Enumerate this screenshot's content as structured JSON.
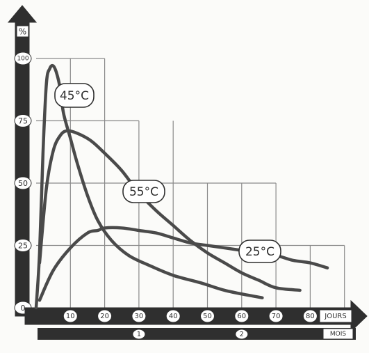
{
  "chart_data": {
    "type": "line",
    "style": "hand-drawn",
    "grid": true,
    "y_unit_label": "%",
    "x_primary_label": "JOURS",
    "x_secondary_label": "MOIS",
    "xlim": [
      0,
      90
    ],
    "ylim": [
      0,
      100
    ],
    "x_ticks": [
      {
        "value": 10,
        "label": "10"
      },
      {
        "value": 20,
        "label": "20"
      },
      {
        "value": 30,
        "label": "30"
      },
      {
        "value": 40,
        "label": "40"
      },
      {
        "value": 50,
        "label": "50"
      },
      {
        "value": 60,
        "label": "60"
      },
      {
        "value": 70,
        "label": "70"
      },
      {
        "value": 80,
        "label": "80"
      }
    ],
    "y_ticks": [
      {
        "value": 0,
        "label": "0"
      },
      {
        "value": 25,
        "label": "25"
      },
      {
        "value": 50,
        "label": "50"
      },
      {
        "value": 75,
        "label": "75"
      },
      {
        "value": 100,
        "label": "100"
      }
    ],
    "month_ticks": [
      {
        "value": 30,
        "label": "1"
      },
      {
        "value": 60,
        "label": "2"
      }
    ],
    "series": [
      {
        "name": "45°C",
        "color": "#4a4a4a",
        "points": [
          [
            0,
            0
          ],
          [
            1,
            22
          ],
          [
            2,
            62
          ],
          [
            3,
            90
          ],
          [
            4,
            96
          ],
          [
            5,
            97
          ],
          [
            6,
            94
          ],
          [
            7,
            88
          ],
          [
            8,
            78
          ],
          [
            10,
            68
          ],
          [
            12,
            58
          ],
          [
            15,
            45
          ],
          [
            18,
            35
          ],
          [
            22,
            27
          ],
          [
            27,
            21
          ],
          [
            33,
            17
          ],
          [
            40,
            13
          ],
          [
            48,
            10
          ],
          [
            55,
            7
          ],
          [
            62,
            5
          ],
          [
            66,
            4
          ]
        ]
      },
      {
        "name": "55°C",
        "color": "#4a4a4a",
        "points": [
          [
            1,
            18
          ],
          [
            3,
            48
          ],
          [
            5,
            63
          ],
          [
            7,
            69
          ],
          [
            9,
            71
          ],
          [
            12,
            70
          ],
          [
            16,
            67
          ],
          [
            20,
            62
          ],
          [
            25,
            55
          ],
          [
            30,
            46
          ],
          [
            35,
            39
          ],
          [
            40,
            33
          ],
          [
            45,
            27
          ],
          [
            50,
            22
          ],
          [
            55,
            18
          ],
          [
            60,
            14
          ],
          [
            65,
            11
          ],
          [
            70,
            8
          ],
          [
            77,
            7
          ]
        ]
      },
      {
        "name": "25°C",
        "color": "#4a4a4a",
        "points": [
          [
            1,
            3
          ],
          [
            5,
            15
          ],
          [
            10,
            24
          ],
          [
            15,
            30
          ],
          [
            18,
            31
          ],
          [
            20,
            32
          ],
          [
            25,
            32
          ],
          [
            30,
            31
          ],
          [
            35,
            30
          ],
          [
            40,
            28
          ],
          [
            45,
            26
          ],
          [
            50,
            25
          ],
          [
            55,
            24
          ],
          [
            60,
            23
          ],
          [
            65,
            22
          ],
          [
            70,
            21
          ],
          [
            75,
            19
          ],
          [
            80,
            18
          ],
          [
            85,
            16
          ]
        ]
      }
    ]
  }
}
